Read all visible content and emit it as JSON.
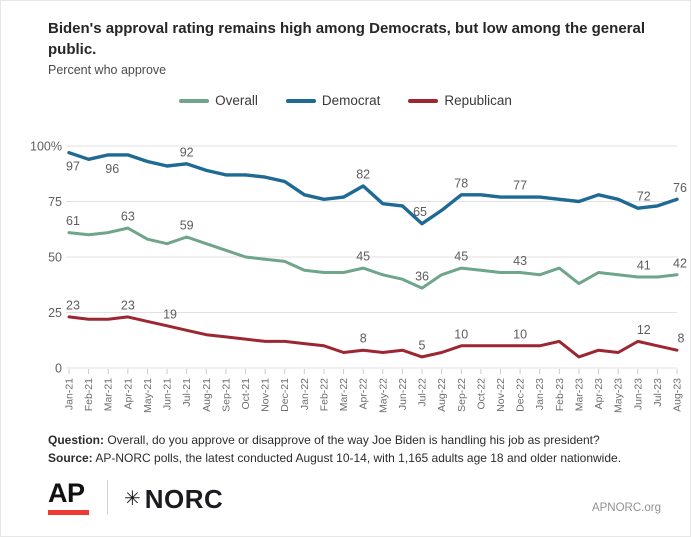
{
  "chart_data": {
    "type": "line",
    "title": "Biden's approval rating remains high among Democrats, but low among the general public.",
    "subtitle": "Percent who approve",
    "xlabel": "",
    "ylabel": "Percent who approve",
    "ylim": [
      0,
      100
    ],
    "grid": true,
    "legend_position": "top",
    "yticks": [
      {
        "v": 100,
        "label": "100%"
      },
      {
        "v": 75,
        "label": "75"
      },
      {
        "v": 50,
        "label": "50"
      },
      {
        "v": 25,
        "label": "25"
      },
      {
        "v": 0,
        "label": "0"
      }
    ],
    "categories": [
      "Jan-21",
      "Feb-21",
      "Mar-21",
      "Apr-21",
      "May-21",
      "Jun-21",
      "Jul-21",
      "Aug-21",
      "Sep-21",
      "Oct-21",
      "Nov-21",
      "Dec-21",
      "Jan-22",
      "Feb-22",
      "Mar-22",
      "Apr-22",
      "May-22",
      "Jun-22",
      "Jul-22",
      "Aug-22",
      "Sep-22",
      "Oct-22",
      "Nov-22",
      "Dec-22",
      "Jan-23",
      "Feb-23",
      "Mar-23",
      "Apr-23",
      "May-23",
      "Jun-23",
      "Jul-23",
      "Aug-23"
    ],
    "series": [
      {
        "name": "Overall",
        "color": "#6fa58a",
        "stroke_width": 3,
        "values": [
          61,
          60,
          61,
          63,
          58,
          56,
          59,
          56,
          53,
          50,
          49,
          48,
          44,
          43,
          43,
          45,
          42,
          40,
          36,
          42,
          45,
          44,
          43,
          43,
          42,
          45,
          38,
          43,
          42,
          41,
          41,
          42
        ],
        "labels": [
          {
            "i": 0,
            "v": 61,
            "dx": 4
          },
          {
            "i": 3,
            "v": 63
          },
          {
            "i": 6,
            "v": 59
          },
          {
            "i": 15,
            "v": 45
          },
          {
            "i": 18,
            "v": 36
          },
          {
            "i": 20,
            "v": 45
          },
          {
            "i": 23,
            "v": 43
          },
          {
            "i": 29,
            "v": 41,
            "dx": 6
          },
          {
            "i": 31,
            "v": 42,
            "dx": 3
          }
        ]
      },
      {
        "name": "Democrat",
        "color": "#1e6a94",
        "stroke_width": 3.4,
        "values": [
          97,
          94,
          96,
          96,
          93,
          91,
          92,
          89,
          87,
          87,
          86,
          84,
          78,
          76,
          77,
          82,
          74,
          73,
          65,
          71,
          78,
          78,
          77,
          77,
          77,
          76,
          75,
          78,
          76,
          72,
          73,
          76
        ],
        "labels": [
          {
            "i": 0,
            "v": 97,
            "dx": 4,
            "pos": "below"
          },
          {
            "i": 2,
            "v": 96,
            "dx": 4,
            "pos": "below"
          },
          {
            "i": 6,
            "v": 92
          },
          {
            "i": 15,
            "v": 82
          },
          {
            "i": 18,
            "v": 65,
            "dx": -2
          },
          {
            "i": 20,
            "v": 78
          },
          {
            "i": 23,
            "v": 77
          },
          {
            "i": 29,
            "v": 72,
            "dx": 6
          },
          {
            "i": 31,
            "v": 76,
            "dx": 3
          }
        ]
      },
      {
        "name": "Republican",
        "color": "#9c2732",
        "stroke_width": 3,
        "values": [
          23,
          22,
          22,
          23,
          21,
          19,
          17,
          15,
          14,
          13,
          12,
          12,
          11,
          10,
          7,
          8,
          7,
          8,
          5,
          7,
          10,
          10,
          10,
          10,
          10,
          12,
          5,
          8,
          7,
          12,
          10,
          8
        ],
        "labels": [
          {
            "i": 0,
            "v": 23,
            "dx": 4
          },
          {
            "i": 3,
            "v": 23
          },
          {
            "i": 5,
            "v": 19,
            "dx": 3
          },
          {
            "i": 15,
            "v": 8
          },
          {
            "i": 18,
            "v": 5
          },
          {
            "i": 20,
            "v": 10
          },
          {
            "i": 23,
            "v": 10
          },
          {
            "i": 29,
            "v": 12,
            "dx": 6
          },
          {
            "i": 31,
            "v": 8,
            "dx": 4
          }
        ]
      }
    ]
  },
  "footer": {
    "question_label": "Question:",
    "question_rest": " Overall, do you approve or disapprove of the way Joe Biden is handling his job as president?",
    "source_label": "Source:",
    "source_rest": " AP-NORC polls, the latest conducted August 10-14, with 1,165 adults age 18 and older nationwide."
  },
  "branding": {
    "ap": "AP",
    "ap_red": "#ee3a33",
    "norc_star": "✳",
    "norc": "NORC",
    "site": "APNORC.org"
  }
}
